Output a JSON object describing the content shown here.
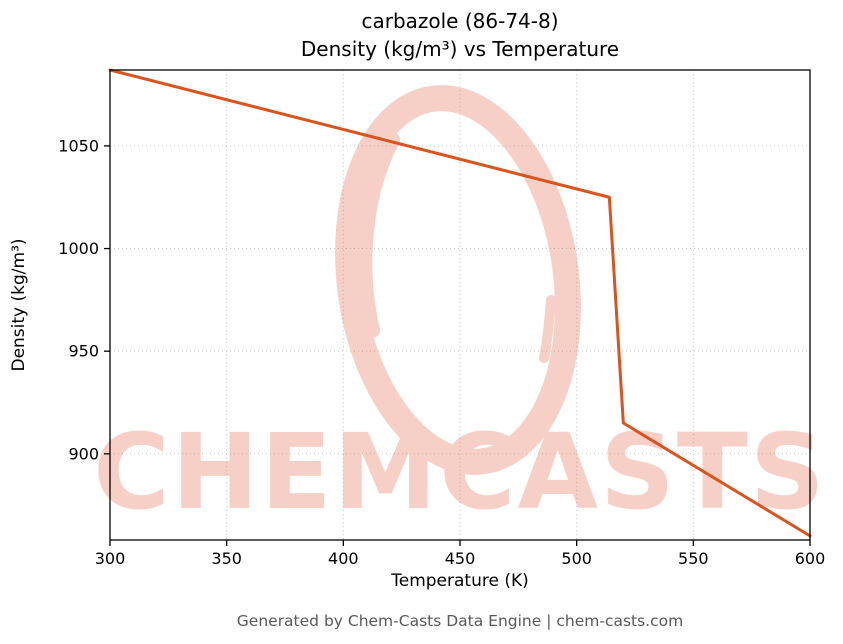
{
  "title": {
    "line1": "carbazole (86-74-8)",
    "line2": "Density (kg/m³) vs Temperature"
  },
  "footer": "Generated by Chem-Casts Data Engine | chem-casts.com",
  "watermark": {
    "text": "CHEMCASTS",
    "color": "#e0593a",
    "opacity": 0.28
  },
  "colors": {
    "line": "#d9541e",
    "grid": "#c8c8c8",
    "axis": "#000000",
    "tick_text": "#000000",
    "footer_text": "#595959"
  },
  "chart_data": {
    "type": "line",
    "title": "carbazole (86-74-8) Density (kg/m³) vs Temperature",
    "xlabel": "Temperature (K)",
    "ylabel": "Density (kg/m³)",
    "xlim": [
      300,
      600
    ],
    "ylim": [
      858,
      1087
    ],
    "x_ticks": [
      300,
      350,
      400,
      450,
      500,
      550,
      600
    ],
    "y_ticks": [
      900,
      950,
      1000,
      1050
    ],
    "grid": true,
    "legend": "none",
    "series": [
      {
        "name": "density",
        "x": [
          300,
          514,
          520,
          600
        ],
        "y": [
          1087,
          1025,
          915,
          860
        ]
      }
    ]
  }
}
